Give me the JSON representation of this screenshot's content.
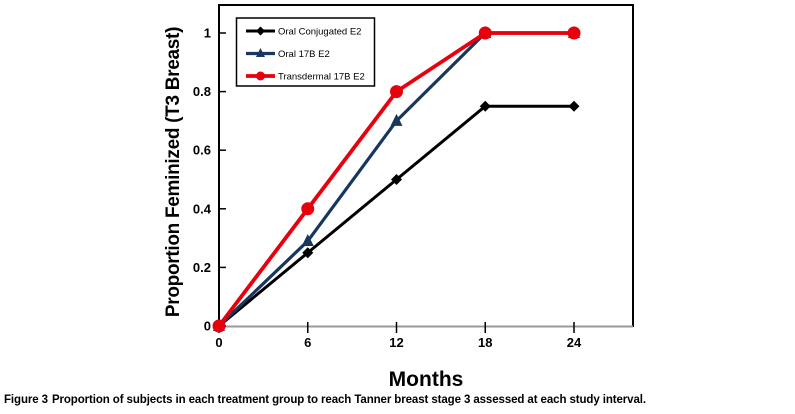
{
  "figure": {
    "caption_label": "Figure 3",
    "caption_text": "Proportion of subjects in each treatment group to reach Tanner breast stage 3 assessed at each study interval."
  },
  "chart_data": {
    "type": "line",
    "title": "",
    "xlabel": "Months",
    "ylabel": "Proportion Feminized (T3 Breast)",
    "x": [
      0,
      6,
      12,
      18,
      24
    ],
    "x_ticks": [
      0,
      6,
      12,
      18,
      24
    ],
    "y_ticks": [
      0,
      0.2,
      0.4,
      0.6,
      0.8,
      1
    ],
    "xlim": [
      0,
      28
    ],
    "ylim": [
      0,
      1.1
    ],
    "grid": false,
    "legend_position": "top-left-inside",
    "frame_color": "#000000",
    "axis_line_color": "#9A9A9A",
    "series": [
      {
        "name": "Oral Conjugated E2",
        "color": "#000000",
        "marker": "diamond",
        "line_width": 3.0,
        "values": [
          0,
          0.25,
          0.5,
          0.75,
          0.75
        ]
      },
      {
        "name": "Oral 17B E2",
        "color": "#17375E",
        "marker": "triangle",
        "line_width": 3.2,
        "values": [
          0,
          0.29,
          0.7,
          1,
          1
        ]
      },
      {
        "name": "Transdermal 17B E2",
        "color": "#E8000D",
        "marker": "circle",
        "line_width": 3.8,
        "values": [
          0,
          0.4,
          0.8,
          1,
          1
        ]
      }
    ]
  }
}
